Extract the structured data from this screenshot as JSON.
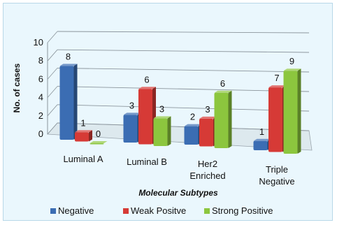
{
  "chart_data": {
    "type": "bar",
    "categories": [
      [
        "Luminal A"
      ],
      [
        "Luminal B"
      ],
      [
        "Her2",
        "Enriched"
      ],
      [
        "Triple",
        "Negative"
      ]
    ],
    "series": [
      {
        "name": "Negative",
        "values": [
          8,
          3,
          2,
          1
        ],
        "color": "#3b6db3"
      },
      {
        "name": "Weak Positve",
        "values": [
          1,
          6,
          3,
          7
        ],
        "color": "#d63a36"
      },
      {
        "name": "Strong Positive",
        "values": [
          0,
          3,
          6,
          9
        ],
        "color": "#8cc63e"
      }
    ],
    "xlabel": "Molecular Subtypes",
    "ylabel": "No. of cases",
    "ylim": [
      0,
      10
    ],
    "yticks": [
      "0",
      "2",
      "4",
      "6",
      "8",
      "10"
    ],
    "grid": true,
    "legend": "bottom",
    "three_d": true
  }
}
